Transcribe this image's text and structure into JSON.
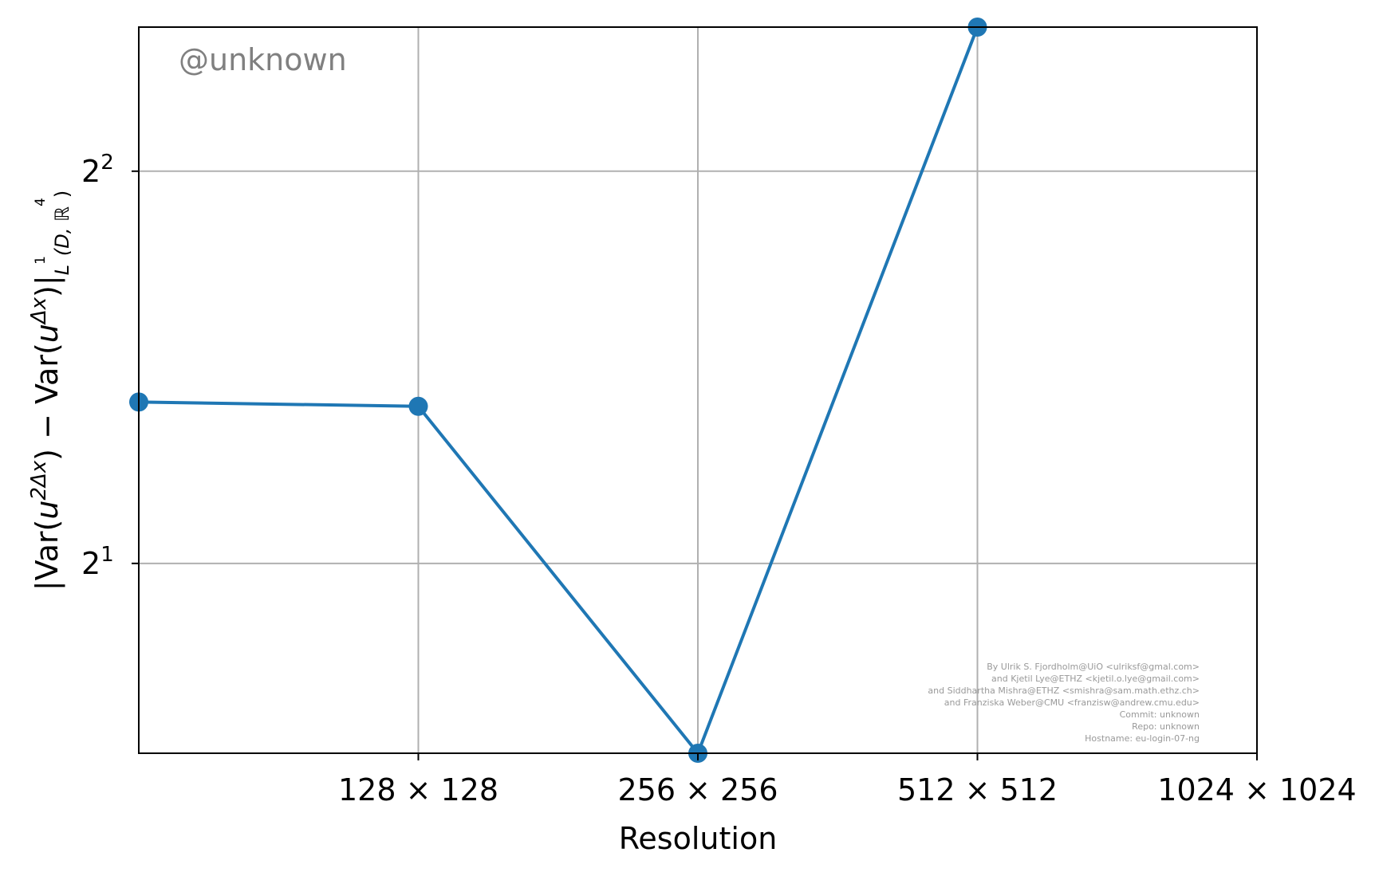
{
  "chart_data": {
    "type": "line",
    "title": "",
    "xlabel": "Resolution",
    "ylabel": "|Var(u^{2Δx}) − Var(u^{Δx})|_{L¹(D,ℝ⁴)}",
    "ylabel_parts": {
      "p1": "|Var(",
      "p2": "u",
      "p3": "2Δx",
      "p4": ") − Var(",
      "p5": "u",
      "p6": "Δx",
      "p7": ")|",
      "p8": "L",
      "p9": "1",
      "p10": "(D, ℝ",
      "p11": "4",
      "p12": ")"
    },
    "x_scale": "log2",
    "y_scale": "log2",
    "grid": true,
    "x_tick_labels": [
      {
        "x": 128,
        "label": "128 × 128"
      },
      {
        "x": 256,
        "label": "256 × 256"
      },
      {
        "x": 512,
        "label": "512 × 512"
      },
      {
        "x": 1024,
        "label": "1024 × 1024"
      }
    ],
    "y_ticks": [
      {
        "y": 2,
        "base": "2",
        "exp": "1"
      },
      {
        "y": 4,
        "base": "2",
        "exp": "2"
      }
    ],
    "xlim": [
      64,
      1024
    ],
    "ylim": [
      1.43,
      5.16
    ],
    "series": [
      {
        "color": "#1f77b4",
        "x": [
          64,
          128,
          256,
          512
        ],
        "y": [
          2.66,
          2.64,
          1.43,
          5.16
        ]
      }
    ]
  },
  "watermark": "@unknown",
  "credits": [
    "By Ulrik S. Fjordholm@UiO <ulriksf@gmal.com>",
    "and Kjetil Lye@ETHZ <kjetil.o.lye@gmail.com>",
    "and Siddhartha Mishra@ETHZ <smishra@sam.math.ethz.ch>",
    "and Franziska Weber@CMU <franzisw@andrew.cmu.edu>",
    "Commit: unknown",
    "Repo: unknown",
    "Hostname: eu-login-07-ng"
  ]
}
